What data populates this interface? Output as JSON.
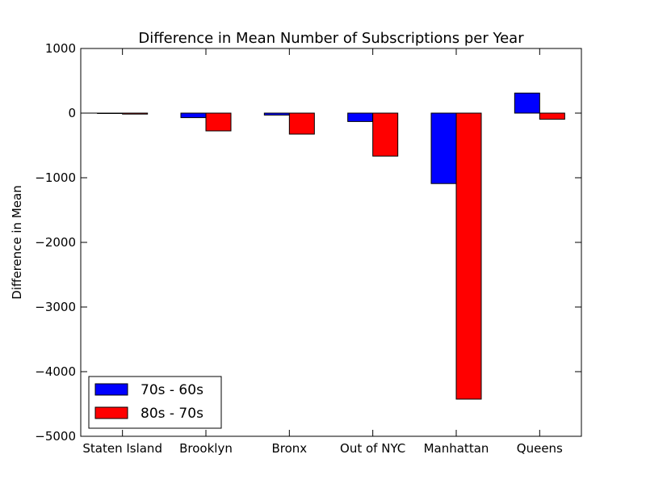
{
  "chart_data": {
    "type": "bar",
    "title": "Difference in Mean Number of Subscriptions per Year",
    "xlabel": "",
    "ylabel": "Difference in Mean",
    "ylim": [
      -5000,
      1000
    ],
    "yticks": [
      1000,
      0,
      -1000,
      -2000,
      -3000,
      -4000,
      -5000
    ],
    "ytick_labels": [
      "1000",
      "0",
      "−1000",
      "−2000",
      "−3000",
      "−4000",
      "−5000"
    ],
    "categories": [
      "Staten Island",
      "Brooklyn",
      "Bronx",
      "Out of NYC",
      "Manhattan",
      "Queens"
    ],
    "series": [
      {
        "name": "70s - 60s",
        "color": "#0000ff",
        "values": [
          -5,
          -70,
          -30,
          -130,
          -1090,
          310
        ]
      },
      {
        "name": "80s - 70s",
        "color": "#ff0000",
        "values": [
          -15,
          -275,
          -325,
          -665,
          -4425,
          -95
        ]
      }
    ],
    "grid": false,
    "legend_position": "lower-left"
  }
}
